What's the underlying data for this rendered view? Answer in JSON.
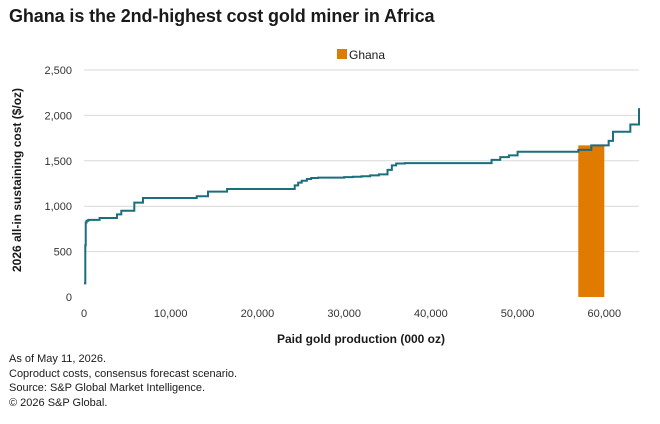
{
  "chart_data": {
    "type": "line",
    "title": "Ghana is the 2nd-highest cost gold miner in Africa",
    "xlabel": "Paid gold production (000 oz)",
    "ylabel": "2026 all-in sustaining cost ($/oz)",
    "xlim": [
      0,
      64000
    ],
    "ylim": [
      0,
      2500
    ],
    "x_ticks": [
      0,
      10000,
      20000,
      30000,
      40000,
      50000,
      60000
    ],
    "y_ticks": [
      0,
      500,
      1000,
      1500,
      2000,
      2500
    ],
    "x_tick_labels": [
      "0",
      "10,000",
      "20,000",
      "30,000",
      "40,000",
      "50,000",
      "60,000"
    ],
    "y_tick_labels": [
      "0",
      "500",
      "1,000",
      "1,500",
      "2,000",
      "2,500"
    ],
    "grid": "horizontal",
    "legend": {
      "placement": "top-center",
      "entries": [
        {
          "label": "Ghana",
          "color": "#e07b00"
        }
      ]
    },
    "line_color": "#1b6e7e",
    "series": [
      {
        "type": "step",
        "x": [
          0,
          150,
          200,
          300,
          500,
          1800,
          3800,
          4300,
          5800,
          6800,
          13000,
          14300,
          16500,
          24300,
          24700,
          25100,
          25700,
          26200,
          27000,
          30000,
          31000,
          32000,
          33000,
          34000,
          35000,
          35500,
          36000,
          37000,
          47000,
          48000,
          49000,
          50000,
          57000,
          58500,
          60000,
          60500,
          61000,
          63000,
          64000
        ],
        "y": [
          150,
          570,
          820,
          840,
          850,
          870,
          910,
          950,
          1040,
          1090,
          1110,
          1160,
          1190,
          1230,
          1260,
          1280,
          1300,
          1310,
          1315,
          1320,
          1325,
          1330,
          1340,
          1350,
          1400,
          1450,
          1470,
          1475,
          1510,
          1540,
          1560,
          1600,
          1620,
          1670,
          1670,
          1720,
          1820,
          1900,
          2080
        ]
      }
    ],
    "highlight": {
      "name": "Ghana",
      "x_start": 57000,
      "x_end": 60000,
      "value": 1670,
      "color": "#e07b00"
    }
  },
  "footnotes": [
    "As of May 11, 2026.",
    "Coproduct costs, consensus forecast scenario.",
    "Source: S&P Global Market Intelligence.",
    "© 2026 S&P Global."
  ]
}
